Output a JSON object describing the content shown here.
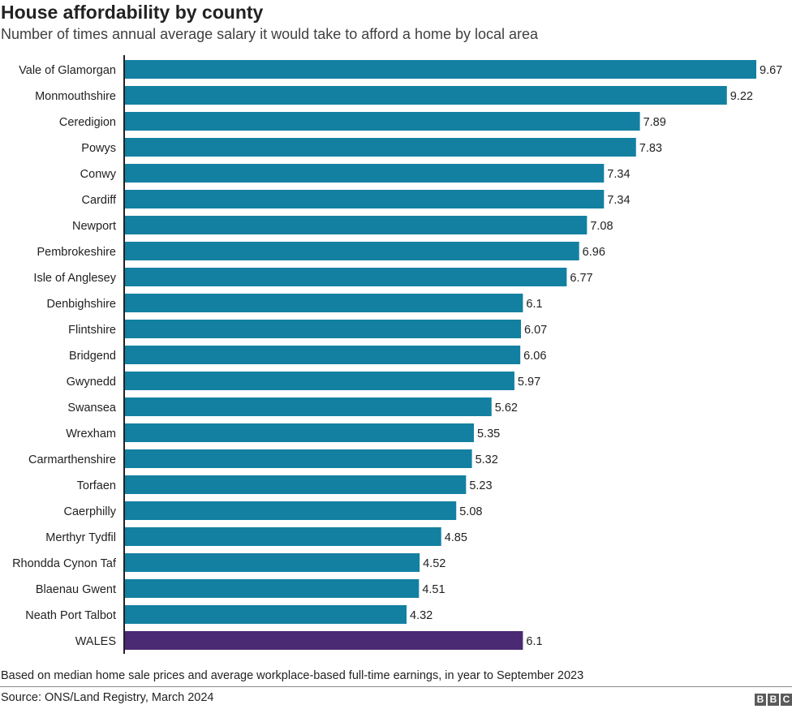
{
  "title": "House affordability by county",
  "subtitle": "Number of times annual average salary it would take to afford a home by local area",
  "note": "Based on median home sale prices and average workplace-based full-time earnings, in year to September 2023",
  "source": "Source: ONS/Land Registry, March 2024",
  "logo": "BBC",
  "colors": {
    "bar": "#1380A1",
    "highlight": "#4B2A74",
    "axis": "#222222"
  },
  "chart_data": {
    "type": "bar",
    "orientation": "horizontal",
    "categories": [
      "Vale of Glamorgan",
      "Monmouthshire",
      "Ceredigion",
      "Powys",
      "Conwy",
      "Cardiff",
      "Newport",
      "Pembrokeshire",
      "Isle of Anglesey",
      "Denbighshire",
      "Flintshire",
      "Bridgend",
      "Gwynedd",
      "Swansea",
      "Wrexham",
      "Carmarthenshire",
      "Torfaen",
      "Caerphilly",
      "Merthyr Tydfil",
      "Rhondda Cynon Taf",
      "Blaenau Gwent",
      "Neath Port Talbot",
      "WALES"
    ],
    "values": [
      9.67,
      9.22,
      7.89,
      7.83,
      7.34,
      7.34,
      7.08,
      6.96,
      6.77,
      6.1,
      6.07,
      6.06,
      5.97,
      5.62,
      5.35,
      5.32,
      5.23,
      5.08,
      4.85,
      4.52,
      4.51,
      4.32,
      6.1
    ],
    "labels": [
      "9.67",
      "9.22",
      "7.89",
      "7.83",
      "7.34",
      "7.34",
      "7.08",
      "6.96",
      "6.77",
      "6.1",
      "6.07",
      "6.06",
      "5.97",
      "5.62",
      "5.35",
      "5.32",
      "5.23",
      "5.08",
      "4.85",
      "4.52",
      "4.51",
      "4.32",
      "6.1"
    ],
    "highlight": "WALES",
    "xlim": [
      0,
      10
    ],
    "grid": false,
    "data_labels": true
  }
}
